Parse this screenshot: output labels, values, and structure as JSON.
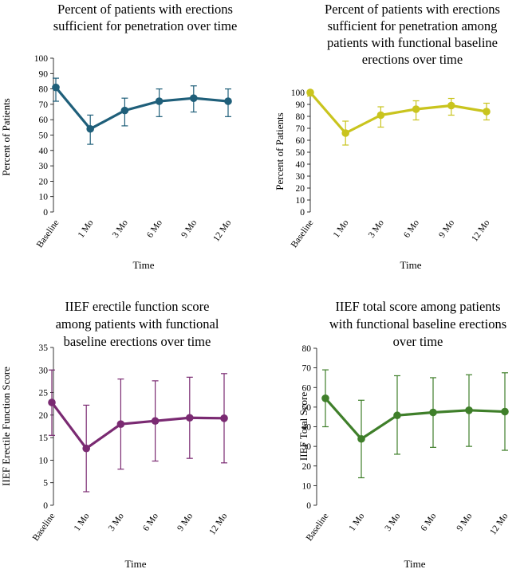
{
  "chart_data": [
    {
      "type": "line",
      "title": [
        "Percent of patients with erections",
        "sufficient for penetration over time"
      ],
      "xlabel": "Time",
      "ylabel": "Percent of Patients",
      "categories": [
        "Baseline",
        "1 Mo",
        "3 Mo",
        "6 Mo",
        "9 Mo",
        "12 Mo"
      ],
      "series": [
        {
          "values": [
            81,
            54,
            66,
            72,
            74,
            72
          ],
          "error_low": [
            72,
            44,
            56,
            62,
            65,
            62
          ],
          "error_high": [
            87,
            63,
            74,
            80,
            82,
            80
          ]
        }
      ],
      "ylim": [
        0,
        100
      ],
      "yticks": [
        0,
        10,
        20,
        30,
        40,
        50,
        60,
        70,
        80,
        90,
        100
      ],
      "color": "#1f5f7a",
      "grid": false
    },
    {
      "type": "line",
      "title": [
        "Percent of patients with erections",
        "sufficient for penetration among",
        "patients with functional baseline",
        "erections over time"
      ],
      "xlabel": "Time",
      "ylabel": "Percent of Patients",
      "categories": [
        "Baseline",
        "1 Mo",
        "3 Mo",
        "6 Mo",
        "9 Mo",
        "12 Mo"
      ],
      "series": [
        {
          "values": [
            100,
            66,
            81,
            86,
            89,
            84
          ],
          "error_low": [
            97,
            56,
            71,
            77,
            81,
            77
          ],
          "error_high": [
            101,
            76,
            88,
            93,
            95,
            91
          ]
        }
      ],
      "ylim": [
        0,
        100
      ],
      "yticks": [
        0,
        10,
        20,
        30,
        40,
        50,
        60,
        70,
        80,
        90,
        100
      ],
      "color": "#c9c41e",
      "grid": false
    },
    {
      "type": "line",
      "title": [
        "IIEF erectile function score",
        "among patients with functional",
        "baseline erections over time"
      ],
      "xlabel": "Time",
      "ylabel": "IIEF Erectile Function Score",
      "categories": [
        "Baseline",
        "1 Mo",
        "3 Mo",
        "6 Mo",
        "9 Mo",
        "12 Mo"
      ],
      "series": [
        {
          "values": [
            22.8,
            12.6,
            18,
            18.7,
            19.4,
            19.3
          ],
          "error_low": [
            15.5,
            3,
            8,
            9.8,
            10.4,
            9.4
          ],
          "error_high": [
            30,
            22.2,
            28,
            27.6,
            28.4,
            29.2
          ]
        }
      ],
      "ylim": [
        0,
        35
      ],
      "yticks": [
        0,
        5,
        10,
        15,
        20,
        25,
        30,
        35
      ],
      "color": "#7a2a72",
      "grid": false
    },
    {
      "type": "line",
      "title": [
        "IIEF total score among patients",
        "with functional baseline erections",
        "over time"
      ],
      "xlabel": "Time",
      "ylabel": "IIEF Total Score",
      "categories": [
        "Baseline",
        "1 Mo",
        "3 Mo",
        "6 Mo",
        "9 Mo",
        "12 Mo"
      ],
      "series": [
        {
          "values": [
            54.5,
            33.8,
            45.8,
            47.3,
            48.4,
            47.7
          ],
          "error_low": [
            40,
            14,
            26,
            29.5,
            30,
            28
          ],
          "error_high": [
            69,
            53.5,
            66,
            65,
            66.5,
            67.5
          ]
        }
      ],
      "ylim": [
        0,
        80
      ],
      "yticks": [
        0,
        10,
        20,
        30,
        40,
        50,
        60,
        70,
        80
      ],
      "color": "#3f7f2a",
      "grid": false
    }
  ]
}
